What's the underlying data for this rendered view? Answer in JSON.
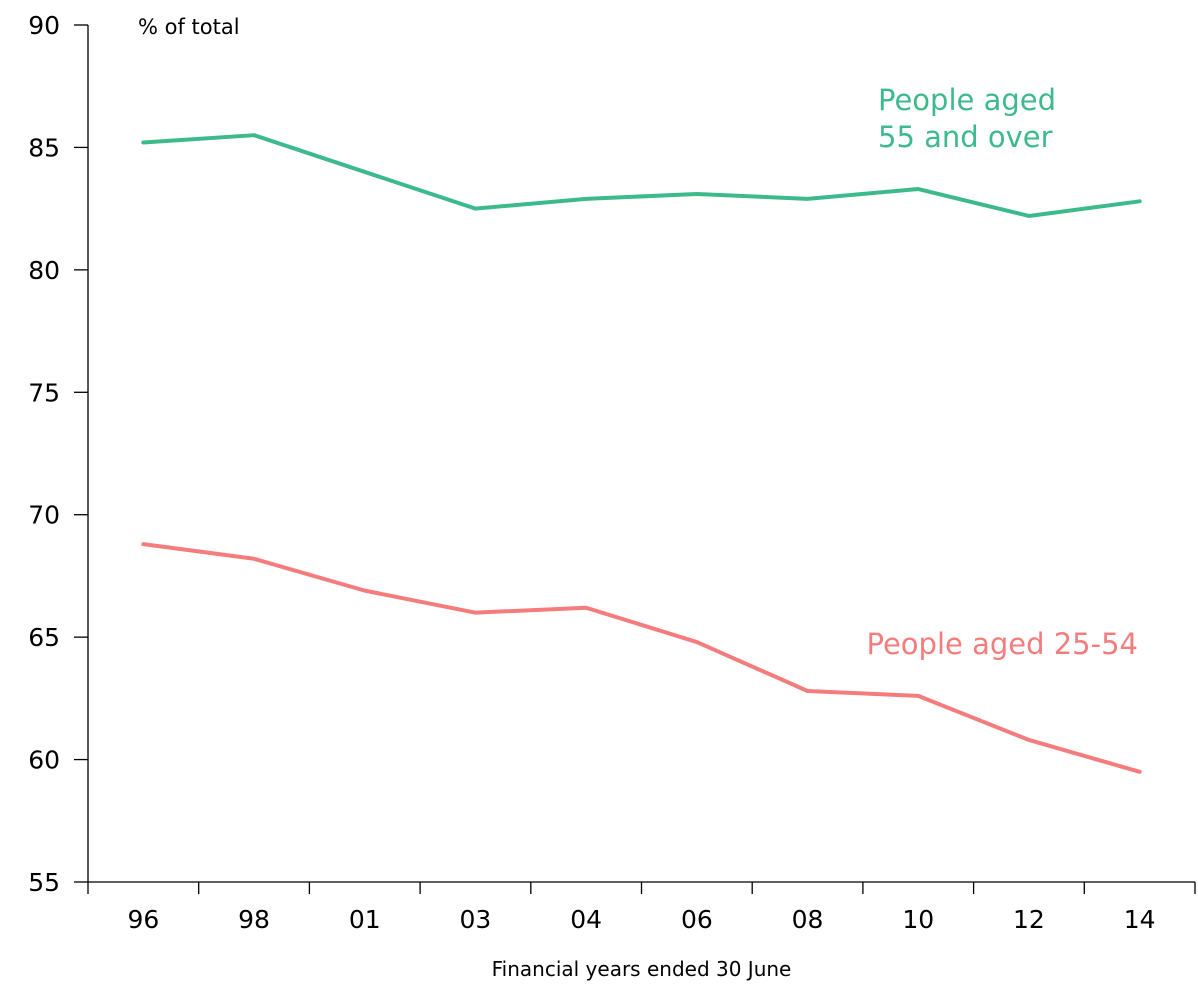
{
  "chart_data": {
    "type": "line",
    "title": "",
    "unit_label": "% of total",
    "xlabel": "Financial years ended 30 June",
    "ylabel": "",
    "categories": [
      "96",
      "98",
      "01",
      "03",
      "04",
      "06",
      "08",
      "10",
      "12",
      "14"
    ],
    "ylim": [
      55,
      90
    ],
    "yticks": [
      55,
      60,
      65,
      70,
      75,
      80,
      85,
      90
    ],
    "grid": false,
    "legend": "none",
    "series": [
      {
        "name": "People aged 55 and over",
        "label_lines": [
          "People aged",
          "55 and over"
        ],
        "color": "#3dba8c",
        "values": [
          85.2,
          85.5,
          84.0,
          82.5,
          82.9,
          83.1,
          82.9,
          83.3,
          82.2,
          82.8
        ]
      },
      {
        "name": "People aged 25-54",
        "label_lines": [
          "People aged 25-54"
        ],
        "color": "#f47c7c",
        "values": [
          68.8,
          68.2,
          66.9,
          66.0,
          66.2,
          64.8,
          62.8,
          62.6,
          60.8,
          59.5
        ]
      }
    ]
  }
}
